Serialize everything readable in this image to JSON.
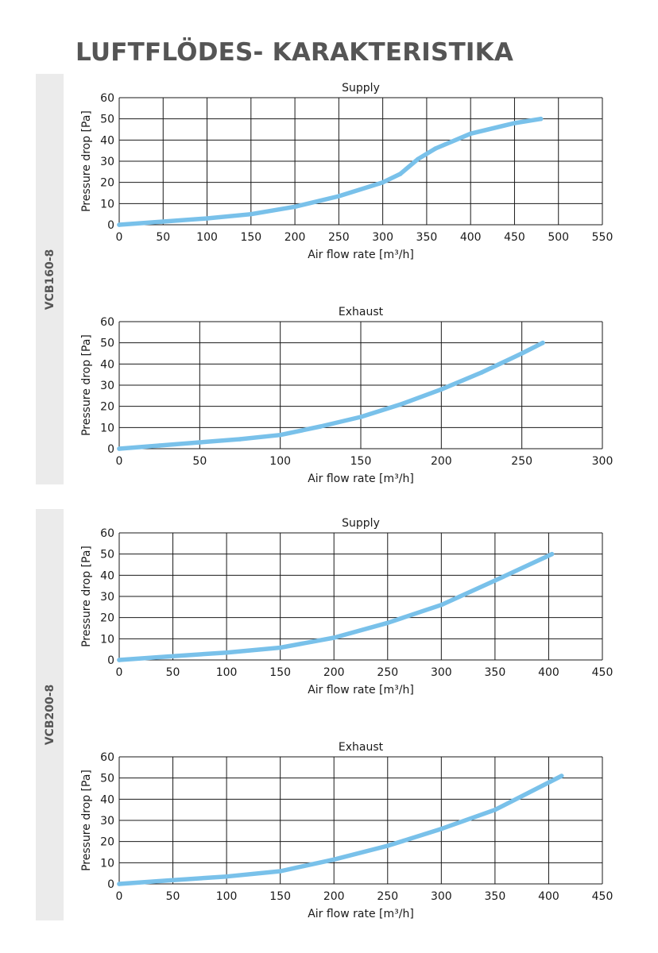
{
  "page_title": "LUFTFLÖDES- KARAKTERISTIKA",
  "sections": [
    {
      "label": "VCB160-8"
    },
    {
      "label": "VCB200-8"
    }
  ],
  "colors": {
    "curve": "#79c1ea",
    "grid": "#1a1a1a",
    "band": "#ebebeb",
    "title": "#555555"
  },
  "chart_data": [
    {
      "type": "line",
      "title": "Supply",
      "xlabel": "Air flow rate [m³/h]",
      "ylabel": "Pressure drop [Pa]",
      "xlim": [
        0,
        550
      ],
      "ylim": [
        0,
        60
      ],
      "xticks": [
        0,
        50,
        100,
        150,
        200,
        250,
        300,
        350,
        400,
        450,
        500,
        550
      ],
      "yticks": [
        0,
        10,
        20,
        30,
        40,
        50,
        60
      ],
      "grid": true,
      "series": [
        {
          "x": [
            0,
            50,
            100,
            150,
            200,
            250,
            300,
            320,
            340,
            360,
            400,
            450,
            480
          ],
          "values": [
            0,
            1.5,
            3,
            5,
            8.5,
            13.5,
            20,
            24,
            31,
            36,
            43,
            48,
            50
          ]
        }
      ]
    },
    {
      "type": "line",
      "title": "Exhaust",
      "xlabel": "Air flow rate [m³/h]",
      "ylabel": "Pressure drop [Pa]",
      "xlim": [
        0,
        300
      ],
      "ylim": [
        0,
        60
      ],
      "xticks": [
        0,
        50,
        100,
        150,
        200,
        250,
        300
      ],
      "yticks": [
        0,
        10,
        20,
        30,
        40,
        50,
        60
      ],
      "grid": true,
      "series": [
        {
          "x": [
            0,
            25,
            50,
            75,
            100,
            125,
            150,
            175,
            200,
            225,
            250,
            263
          ],
          "values": [
            0,
            1.5,
            3,
            4.5,
            6.5,
            10.5,
            15,
            21,
            28,
            36,
            45,
            50
          ]
        }
      ]
    },
    {
      "type": "line",
      "title": "Supply",
      "xlabel": "Air flow rate [m³/h]",
      "ylabel": "Pressure drop [Pa]",
      "xlim": [
        0,
        450
      ],
      "ylim": [
        0,
        60
      ],
      "xticks": [
        0,
        50,
        100,
        150,
        200,
        250,
        300,
        350,
        400,
        450
      ],
      "yticks": [
        0,
        10,
        20,
        30,
        40,
        50,
        60
      ],
      "grid": true,
      "series": [
        {
          "x": [
            0,
            50,
            100,
            150,
            200,
            250,
            300,
            350,
            403
          ],
          "values": [
            0,
            1.8,
            3.5,
            5.8,
            10.5,
            17.5,
            26,
            37.5,
            50
          ]
        }
      ]
    },
    {
      "type": "line",
      "title": "Exhaust",
      "xlabel": "Air flow rate [m³/h]",
      "ylabel": "Pressure drop [Pa]",
      "xlim": [
        0,
        450
      ],
      "ylim": [
        0,
        60
      ],
      "xticks": [
        0,
        50,
        100,
        150,
        200,
        250,
        300,
        350,
        400,
        450
      ],
      "yticks": [
        0,
        10,
        20,
        30,
        40,
        50,
        60
      ],
      "grid": true,
      "series": [
        {
          "x": [
            0,
            50,
            100,
            150,
            200,
            250,
            300,
            350,
            412
          ],
          "values": [
            0,
            1.8,
            3.5,
            6,
            11.5,
            18,
            26,
            35,
            51
          ]
        }
      ]
    }
  ]
}
